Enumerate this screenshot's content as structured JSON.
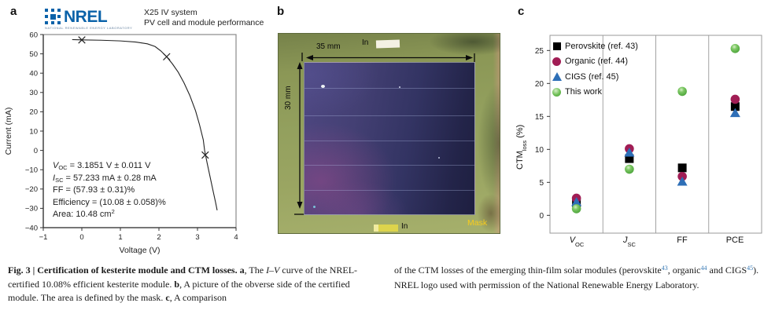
{
  "colors": {
    "nrel_blue": "#0a62a9",
    "perovskite": "#000000",
    "organic": "#a11d55",
    "cigs": "#2e6fb7",
    "this_work": "#6cbd53",
    "mask_text_yellow": "#f8cc1c",
    "reference_link_blue": "#3779b5"
  },
  "panels": {
    "a": {
      "label": "a",
      "logo": {
        "name": "NREL",
        "tagline": "NATIONAL RENEWABLE ENERGY LABORATORY"
      },
      "header_line1": "X25 IV system",
      "header_line2": "PV cell and module performance"
    },
    "b": {
      "label": "b",
      "width_label": "35 mm",
      "height_label": "30 mm",
      "top_contact_label": "In",
      "bottom_contact_label": "In",
      "mask_label": "Mask"
    },
    "c": {
      "label": "c",
      "ylabel": {
        "main": "CTM",
        "sub": "loss",
        "rest": " (%)"
      },
      "xcats": [
        {
          "main": "V",
          "sub": "OC"
        },
        {
          "main": "J",
          "sub": "SC"
        },
        {
          "main": "FF"
        },
        {
          "main": "PCE"
        }
      ]
    }
  },
  "chart_data": [
    {
      "id": "iv_curve",
      "type": "line",
      "xlabel": "Voltage (V)",
      "ylabel": "Current (mA)",
      "xlim": [
        -1,
        4
      ],
      "ylim": [
        -40,
        60
      ],
      "xticks": [
        -1,
        0,
        1,
        2,
        3,
        4
      ],
      "yticks": [
        -40,
        -30,
        -20,
        -10,
        0,
        10,
        20,
        30,
        40,
        50,
        60
      ],
      "curve": [
        [
          -0.25,
          57.4
        ],
        [
          0,
          57.25
        ],
        [
          0.5,
          57.05
        ],
        [
          1.0,
          56.7
        ],
        [
          1.4,
          56.1
        ],
        [
          1.7,
          55.2
        ],
        [
          1.9,
          53.8
        ],
        [
          2.05,
          51.5
        ],
        [
          2.2,
          48.5
        ],
        [
          2.35,
          44.8
        ],
        [
          2.5,
          40.5
        ],
        [
          2.65,
          35.0
        ],
        [
          2.8,
          28.5
        ],
        [
          2.95,
          20.5
        ],
        [
          3.05,
          13.5
        ],
        [
          3.15,
          5.5
        ],
        [
          3.185,
          0
        ],
        [
          3.25,
          -6.5
        ],
        [
          3.33,
          -14.0
        ],
        [
          3.41,
          -21.5
        ],
        [
          3.47,
          -27.0
        ],
        [
          3.51,
          -31.0
        ]
      ],
      "markers": [
        [
          0,
          57.2
        ],
        [
          2.2,
          48.5
        ],
        [
          3.2,
          -2.4
        ]
      ],
      "stats": {
        "voc": {
          "sym": "V",
          "sub": "OC",
          "rest": " = 3.1851 V ± 0.011 V"
        },
        "isc": {
          "sym": "I",
          "sub": "SC",
          "rest": " = 57.233 mA ± 0.28 mA"
        },
        "ff": "FF = (57.93 ± 0.31)%",
        "eff": "Efficiency = (10.08 ± 0.058)%",
        "area": {
          "pre": "Area: 10.48 cm",
          "sup": "2"
        }
      }
    },
    {
      "id": "ctm_loss_comparison",
      "type": "scatter",
      "ylabel": "CTM_loss (%)",
      "categories": [
        "V_OC",
        "J_SC",
        "FF",
        "PCE"
      ],
      "ylim": [
        -2.7,
        27.3
      ],
      "yticks": [
        0,
        5,
        10,
        15,
        20,
        25
      ],
      "legend_position": "top-left",
      "series": [
        {
          "name": "Perovskite (ref. 43)",
          "marker": "square",
          "color": "#000000",
          "values": [
            1.9,
            8.6,
            7.2,
            16.5
          ]
        },
        {
          "name": "Organic (ref. 44)",
          "marker": "circle",
          "color": "#a11d55",
          "values": [
            2.6,
            10.1,
            5.9,
            17.6
          ]
        },
        {
          "name": "CIGS (ref. 45)",
          "marker": "triangle",
          "color": "#2e6fb7",
          "values": [
            2.0,
            9.5,
            5.1,
            15.5
          ]
        },
        {
          "name": "This work",
          "marker": "sphere",
          "color": "#6cbd53",
          "values": [
            1.0,
            7.0,
            18.8,
            25.3
          ]
        }
      ]
    }
  ],
  "caption": {
    "fig_bold": "Fig. 3 | Certification of kesterite module and CTM losses. ",
    "a_marker": "a",
    "a_pre": ", The ",
    "iv_italic": "I–V",
    "a_post": " curve of the NREL-certified 10.08% efficient kesterite module. ",
    "b_marker": "b",
    "b_text": ", A picture of the obverse side of the certified module. The area is defined by the mask. ",
    "c_marker": "c",
    "c_text": ", A comparison",
    "col2_p1": "of the CTM losses of the emerging thin-film solar modules (perovskite",
    "ref43": "43",
    "col2_p2": ", organic",
    "ref44": "44",
    "col2_p3": " and CIGS",
    "ref45": "45",
    "col2_p4": "). NREL logo used with permission of the National Renewable Energy Laboratory."
  }
}
